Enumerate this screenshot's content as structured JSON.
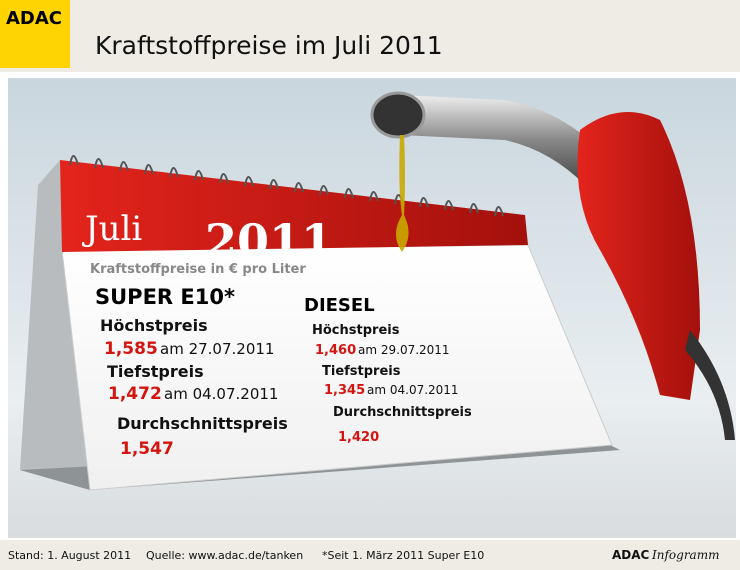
{
  "header": {
    "logo": "ADAC",
    "title": "Kraftstoffpreise im Juli 2011"
  },
  "calendar": {
    "month": "Juli",
    "year": "2011",
    "subtitle": "Kraftstoffpreise in € pro Liter",
    "super": {
      "heading": "SUPER E10*",
      "highest": {
        "label": "Höchstpreis",
        "price": "1,585",
        "date": "am 27.07.2011"
      },
      "lowest": {
        "label": "Tiefstpreis",
        "price": "1,472",
        "date": "am 04.07.2011"
      },
      "average": {
        "label": "Durchschnittspreis",
        "price": "1,547"
      }
    },
    "diesel": {
      "heading": "DIESEL",
      "highest": {
        "label": "Höchstpreis",
        "price": "1,460",
        "date": "am 29.07.2011"
      },
      "lowest": {
        "label": "Tiefstpreis",
        "price": "1,345",
        "date": "am 04.07.2011"
      },
      "average": {
        "label": "Durchschnittspreis",
        "price": "1,420"
      }
    }
  },
  "footer": {
    "date": "Stand: 1. August 2011",
    "source": "Quelle: www.adac.de/tanken",
    "note": "*Seit 1. März 2011 Super E10",
    "brand": "ADAC",
    "brand_suffix": "Infogramm"
  }
}
